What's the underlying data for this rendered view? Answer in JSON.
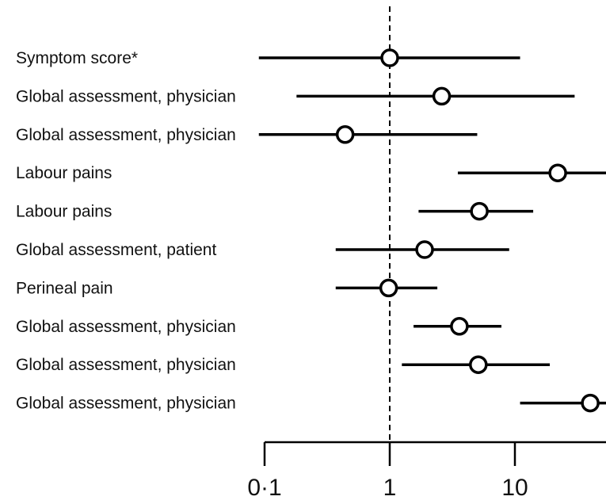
{
  "chart_data": {
    "type": "forest",
    "x_scale": "log",
    "xlim": [
      0.1,
      70
    ],
    "reference_line": 1,
    "x_ticks": [
      {
        "value": 0.1,
        "label": "0·1"
      },
      {
        "value": 1,
        "label": "1"
      },
      {
        "value": 10,
        "label": "10"
      }
    ],
    "rows": [
      {
        "label": "Symptom score*",
        "estimate": 1.0,
        "lower": 0.09,
        "upper": 11.0
      },
      {
        "label": "Global assessment, physician",
        "estimate": 2.6,
        "lower": 0.18,
        "upper": 30.0
      },
      {
        "label": "Global assessment, physician",
        "estimate": 0.44,
        "lower": 0.09,
        "upper": 5.0
      },
      {
        "label": "Labour pains",
        "estimate": 22.0,
        "lower": 3.5,
        "upper": 70.0
      },
      {
        "label": "Labour pains",
        "estimate": 5.2,
        "lower": 1.7,
        "upper": 14.0
      },
      {
        "label": "Global assessment, patient",
        "estimate": 1.9,
        "lower": 0.37,
        "upper": 9.0
      },
      {
        "label": "Perineal pain",
        "estimate": 0.98,
        "lower": 0.37,
        "upper": 2.4
      },
      {
        "label": "Global assessment, physician",
        "estimate": 3.6,
        "lower": 1.55,
        "upper": 7.8
      },
      {
        "label": "Global assessment, physician",
        "estimate": 5.1,
        "lower": 1.25,
        "upper": 19.0
      },
      {
        "label": "Global assessment, physician",
        "estimate": 40.0,
        "lower": 11.0,
        "upper": 70.0
      }
    ],
    "colors": {
      "line": "#000000",
      "marker_fill": "#ffffff",
      "text": "#111111"
    }
  }
}
